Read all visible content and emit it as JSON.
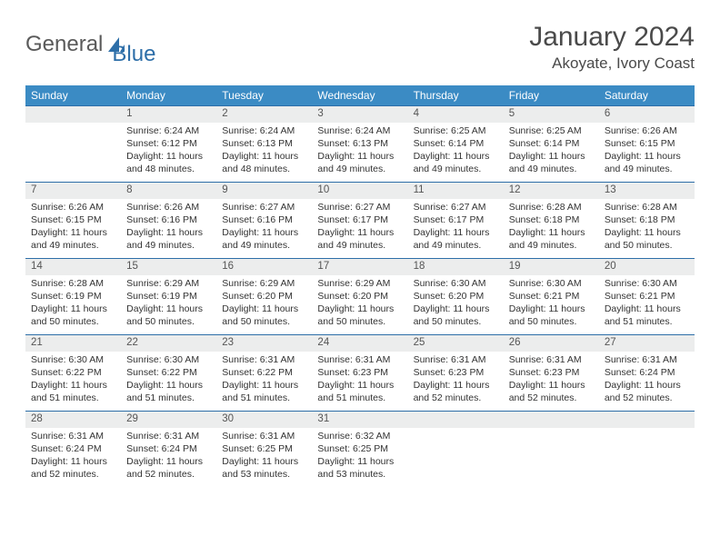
{
  "logo": {
    "text1": "General",
    "text2": "Blue"
  },
  "title": "January 2024",
  "location": "Akoyate, Ivory Coast",
  "colors": {
    "header_bg": "#3b8bc4",
    "header_text": "#ffffff",
    "daynum_bg": "#eceded",
    "border": "#2d6ea8",
    "text": "#333333",
    "logo_gray": "#5a5a5a",
    "logo_blue": "#2d6ea8"
  },
  "weekdays": [
    "Sunday",
    "Monday",
    "Tuesday",
    "Wednesday",
    "Thursday",
    "Friday",
    "Saturday"
  ],
  "weeks": [
    [
      null,
      {
        "n": "1",
        "sr": "6:24 AM",
        "ss": "6:12 PM",
        "dl": "11 hours and 48 minutes."
      },
      {
        "n": "2",
        "sr": "6:24 AM",
        "ss": "6:13 PM",
        "dl": "11 hours and 48 minutes."
      },
      {
        "n": "3",
        "sr": "6:24 AM",
        "ss": "6:13 PM",
        "dl": "11 hours and 49 minutes."
      },
      {
        "n": "4",
        "sr": "6:25 AM",
        "ss": "6:14 PM",
        "dl": "11 hours and 49 minutes."
      },
      {
        "n": "5",
        "sr": "6:25 AM",
        "ss": "6:14 PM",
        "dl": "11 hours and 49 minutes."
      },
      {
        "n": "6",
        "sr": "6:26 AM",
        "ss": "6:15 PM",
        "dl": "11 hours and 49 minutes."
      }
    ],
    [
      {
        "n": "7",
        "sr": "6:26 AM",
        "ss": "6:15 PM",
        "dl": "11 hours and 49 minutes."
      },
      {
        "n": "8",
        "sr": "6:26 AM",
        "ss": "6:16 PM",
        "dl": "11 hours and 49 minutes."
      },
      {
        "n": "9",
        "sr": "6:27 AM",
        "ss": "6:16 PM",
        "dl": "11 hours and 49 minutes."
      },
      {
        "n": "10",
        "sr": "6:27 AM",
        "ss": "6:17 PM",
        "dl": "11 hours and 49 minutes."
      },
      {
        "n": "11",
        "sr": "6:27 AM",
        "ss": "6:17 PM",
        "dl": "11 hours and 49 minutes."
      },
      {
        "n": "12",
        "sr": "6:28 AM",
        "ss": "6:18 PM",
        "dl": "11 hours and 49 minutes."
      },
      {
        "n": "13",
        "sr": "6:28 AM",
        "ss": "6:18 PM",
        "dl": "11 hours and 50 minutes."
      }
    ],
    [
      {
        "n": "14",
        "sr": "6:28 AM",
        "ss": "6:19 PM",
        "dl": "11 hours and 50 minutes."
      },
      {
        "n": "15",
        "sr": "6:29 AM",
        "ss": "6:19 PM",
        "dl": "11 hours and 50 minutes."
      },
      {
        "n": "16",
        "sr": "6:29 AM",
        "ss": "6:20 PM",
        "dl": "11 hours and 50 minutes."
      },
      {
        "n": "17",
        "sr": "6:29 AM",
        "ss": "6:20 PM",
        "dl": "11 hours and 50 minutes."
      },
      {
        "n": "18",
        "sr": "6:30 AM",
        "ss": "6:20 PM",
        "dl": "11 hours and 50 minutes."
      },
      {
        "n": "19",
        "sr": "6:30 AM",
        "ss": "6:21 PM",
        "dl": "11 hours and 50 minutes."
      },
      {
        "n": "20",
        "sr": "6:30 AM",
        "ss": "6:21 PM",
        "dl": "11 hours and 51 minutes."
      }
    ],
    [
      {
        "n": "21",
        "sr": "6:30 AM",
        "ss": "6:22 PM",
        "dl": "11 hours and 51 minutes."
      },
      {
        "n": "22",
        "sr": "6:30 AM",
        "ss": "6:22 PM",
        "dl": "11 hours and 51 minutes."
      },
      {
        "n": "23",
        "sr": "6:31 AM",
        "ss": "6:22 PM",
        "dl": "11 hours and 51 minutes."
      },
      {
        "n": "24",
        "sr": "6:31 AM",
        "ss": "6:23 PM",
        "dl": "11 hours and 51 minutes."
      },
      {
        "n": "25",
        "sr": "6:31 AM",
        "ss": "6:23 PM",
        "dl": "11 hours and 52 minutes."
      },
      {
        "n": "26",
        "sr": "6:31 AM",
        "ss": "6:23 PM",
        "dl": "11 hours and 52 minutes."
      },
      {
        "n": "27",
        "sr": "6:31 AM",
        "ss": "6:24 PM",
        "dl": "11 hours and 52 minutes."
      }
    ],
    [
      {
        "n": "28",
        "sr": "6:31 AM",
        "ss": "6:24 PM",
        "dl": "11 hours and 52 minutes."
      },
      {
        "n": "29",
        "sr": "6:31 AM",
        "ss": "6:24 PM",
        "dl": "11 hours and 52 minutes."
      },
      {
        "n": "30",
        "sr": "6:31 AM",
        "ss": "6:25 PM",
        "dl": "11 hours and 53 minutes."
      },
      {
        "n": "31",
        "sr": "6:32 AM",
        "ss": "6:25 PM",
        "dl": "11 hours and 53 minutes."
      },
      null,
      null,
      null
    ]
  ],
  "labels": {
    "sunrise": "Sunrise:",
    "sunset": "Sunset:",
    "daylight": "Daylight:"
  }
}
